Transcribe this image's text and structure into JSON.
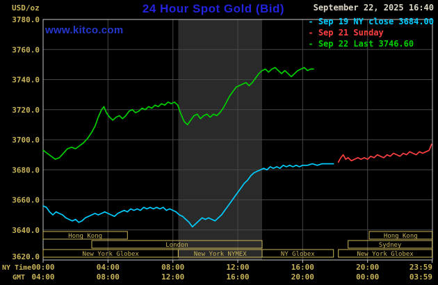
{
  "header": {
    "units_label": "USD/oz",
    "title": "24 Hour Spot Gold (Bid)",
    "datetime": "September 22, 2025 16:40",
    "watermark": "www.kitco.com"
  },
  "legend": {
    "items": [
      {
        "label": "Sep 19 NY close 3684.00",
        "color": "#00ccff"
      },
      {
        "label": "Sep 21 Sunday",
        "color": "#ff4040"
      },
      {
        "label": "Sep 22 Last 3746.60",
        "color": "#00d000"
      }
    ]
  },
  "axes": {
    "ny_caption": "NY Time",
    "gmt_caption": "GMT",
    "x_ticks_ny": [
      "00:00",
      "04:00",
      "08:00",
      "12:00",
      "16:00",
      "20:00",
      "23:59"
    ],
    "x_ticks_gmt": [
      "04:00",
      "08:00",
      "12:00",
      "16:00",
      "20:00",
      "00:00",
      "03:59"
    ]
  },
  "sessions": {
    "rows": [
      {
        "boxes": [
          {
            "label": "Hong Kong",
            "start": 0,
            "end": 5.2
          },
          {
            "label": "Hong Kong",
            "start": 20.1,
            "end": 23.983
          }
        ]
      },
      {
        "boxes": [
          {
            "label": "London",
            "start": 3.0,
            "end": 13.5
          },
          {
            "label": "Sydney",
            "start": 18.8,
            "end": 23.983
          }
        ]
      },
      {
        "boxes": [
          {
            "label": "New York Globex",
            "start": 0,
            "end": 8.33
          },
          {
            "label": "New York NYMEX",
            "start": 8.33,
            "end": 13.5
          },
          {
            "label": "NY Globex",
            "start": 13.5,
            "end": 17.9
          },
          {
            "label": "New York Globex",
            "start": 18.2,
            "end": 23.983
          }
        ]
      }
    ]
  },
  "colors": {
    "background": "#000000",
    "grid": "#474747",
    "border": "#c8c8c8",
    "axis_text": "#c9b459",
    "band": "#2a2a2a",
    "title": "#2323dd",
    "watermark": "#2436cc",
    "datetime": "#ddd8c8"
  },
  "chart_data": {
    "type": "line",
    "title": "24 Hour Spot Gold (Bid)",
    "ylabel": "USD/oz",
    "xlabel": "NY Time (hours)",
    "ylim": [
      3620,
      3780
    ],
    "yticks": [
      3780,
      3760,
      3740,
      3720,
      3700,
      3680,
      3660,
      3640,
      3620
    ],
    "xlim_hours": [
      0,
      24
    ],
    "xticks_hours": [
      0,
      4,
      8,
      12,
      16,
      20,
      23.983
    ],
    "shaded_region_hours": [
      8.33,
      13.5
    ],
    "legend_position": "top-right",
    "grid": true,
    "series": [
      {
        "id": "sep19",
        "name": "Sep 19 NY close",
        "close": 3684.0,
        "color": "#00ccff",
        "points": [
          [
            0,
            3656
          ],
          [
            0.2,
            3655
          ],
          [
            0.4,
            3652
          ],
          [
            0.6,
            3650
          ],
          [
            0.8,
            3652
          ],
          [
            1,
            3651
          ],
          [
            1.2,
            3650
          ],
          [
            1.4,
            3648
          ],
          [
            1.6,
            3647
          ],
          [
            1.8,
            3646
          ],
          [
            2,
            3647
          ],
          [
            2.2,
            3645
          ],
          [
            2.4,
            3646
          ],
          [
            2.6,
            3648
          ],
          [
            2.8,
            3649
          ],
          [
            3,
            3650
          ],
          [
            3.2,
            3651
          ],
          [
            3.4,
            3650
          ],
          [
            3.6,
            3651
          ],
          [
            3.8,
            3652
          ],
          [
            4,
            3651
          ],
          [
            4.2,
            3650
          ],
          [
            4.4,
            3649
          ],
          [
            4.6,
            3651
          ],
          [
            4.8,
            3652
          ],
          [
            5,
            3653
          ],
          [
            5.2,
            3652
          ],
          [
            5.4,
            3654
          ],
          [
            5.6,
            3653
          ],
          [
            5.8,
            3654
          ],
          [
            6,
            3653
          ],
          [
            6.2,
            3655
          ],
          [
            6.4,
            3654
          ],
          [
            6.6,
            3655
          ],
          [
            6.8,
            3654
          ],
          [
            7,
            3655
          ],
          [
            7.2,
            3654
          ],
          [
            7.4,
            3655
          ],
          [
            7.6,
            3653
          ],
          [
            7.8,
            3654
          ],
          [
            8,
            3653
          ],
          [
            8.2,
            3652
          ],
          [
            8.4,
            3650
          ],
          [
            8.6,
            3649
          ],
          [
            8.8,
            3647
          ],
          [
            9,
            3645
          ],
          [
            9.2,
            3642
          ],
          [
            9.4,
            3644
          ],
          [
            9.6,
            3646
          ],
          [
            9.8,
            3648
          ],
          [
            10,
            3647
          ],
          [
            10.2,
            3648
          ],
          [
            10.4,
            3647
          ],
          [
            10.6,
            3646
          ],
          [
            10.8,
            3648
          ],
          [
            11,
            3650
          ],
          [
            11.2,
            3653
          ],
          [
            11.4,
            3656
          ],
          [
            11.6,
            3659
          ],
          [
            11.8,
            3662
          ],
          [
            12,
            3665
          ],
          [
            12.2,
            3668
          ],
          [
            12.4,
            3671
          ],
          [
            12.6,
            3673
          ],
          [
            12.8,
            3676
          ],
          [
            13,
            3678
          ],
          [
            13.2,
            3679
          ],
          [
            13.4,
            3680
          ],
          [
            13.6,
            3681
          ],
          [
            13.8,
            3680
          ],
          [
            14,
            3682
          ],
          [
            14.2,
            3681
          ],
          [
            14.4,
            3682
          ],
          [
            14.6,
            3681
          ],
          [
            14.8,
            3683
          ],
          [
            15,
            3682
          ],
          [
            15.2,
            3683
          ],
          [
            15.4,
            3682
          ],
          [
            15.6,
            3683
          ],
          [
            15.8,
            3682
          ],
          [
            16,
            3683
          ],
          [
            16.3,
            3683
          ],
          [
            16.6,
            3684
          ],
          [
            16.9,
            3683
          ],
          [
            17.2,
            3684
          ],
          [
            17.5,
            3684
          ],
          [
            17.9,
            3684
          ]
        ]
      },
      {
        "id": "sep21",
        "name": "Sep 21 Sunday",
        "color": "#ff4040",
        "points": [
          [
            18.2,
            3685
          ],
          [
            18.35,
            3688
          ],
          [
            18.5,
            3690
          ],
          [
            18.65,
            3687
          ],
          [
            18.8,
            3688
          ],
          [
            19,
            3686
          ],
          [
            19.2,
            3687
          ],
          [
            19.4,
            3688
          ],
          [
            19.6,
            3687
          ],
          [
            19.8,
            3688
          ],
          [
            20,
            3687
          ],
          [
            20.2,
            3689
          ],
          [
            20.4,
            3688
          ],
          [
            20.6,
            3690
          ],
          [
            20.8,
            3689
          ],
          [
            21,
            3688
          ],
          [
            21.2,
            3690
          ],
          [
            21.4,
            3689
          ],
          [
            21.6,
            3691
          ],
          [
            21.8,
            3690
          ],
          [
            22,
            3689
          ],
          [
            22.2,
            3691
          ],
          [
            22.4,
            3690
          ],
          [
            22.6,
            3692
          ],
          [
            22.8,
            3691
          ],
          [
            23,
            3690
          ],
          [
            23.2,
            3692
          ],
          [
            23.4,
            3691
          ],
          [
            23.6,
            3692
          ],
          [
            23.8,
            3693
          ],
          [
            23.95,
            3697
          ]
        ]
      },
      {
        "id": "sep22",
        "name": "Sep 22 Last",
        "last": 3746.6,
        "color": "#00d000",
        "points": [
          [
            0,
            3693
          ],
          [
            0.25,
            3691
          ],
          [
            0.5,
            3689
          ],
          [
            0.75,
            3687
          ],
          [
            1,
            3688
          ],
          [
            1.25,
            3691
          ],
          [
            1.5,
            3694
          ],
          [
            1.75,
            3695
          ],
          [
            2,
            3694
          ],
          [
            2.25,
            3696
          ],
          [
            2.5,
            3698
          ],
          [
            2.75,
            3701
          ],
          [
            3,
            3705
          ],
          [
            3.2,
            3709
          ],
          [
            3.4,
            3715
          ],
          [
            3.6,
            3720
          ],
          [
            3.75,
            3722
          ],
          [
            3.9,
            3718
          ],
          [
            4.1,
            3715
          ],
          [
            4.3,
            3713
          ],
          [
            4.5,
            3715
          ],
          [
            4.7,
            3716
          ],
          [
            4.9,
            3714
          ],
          [
            5.1,
            3716
          ],
          [
            5.3,
            3719
          ],
          [
            5.5,
            3720
          ],
          [
            5.7,
            3718
          ],
          [
            5.9,
            3719
          ],
          [
            6.1,
            3721
          ],
          [
            6.3,
            3720
          ],
          [
            6.5,
            3722
          ],
          [
            6.7,
            3721
          ],
          [
            6.9,
            3723
          ],
          [
            7.1,
            3722
          ],
          [
            7.3,
            3724
          ],
          [
            7.5,
            3723
          ],
          [
            7.7,
            3725
          ],
          [
            7.9,
            3724
          ],
          [
            8.1,
            3725
          ],
          [
            8.3,
            3723
          ],
          [
            8.5,
            3717
          ],
          [
            8.7,
            3712
          ],
          [
            8.9,
            3710
          ],
          [
            9.1,
            3713
          ],
          [
            9.3,
            3716
          ],
          [
            9.5,
            3717
          ],
          [
            9.7,
            3714
          ],
          [
            9.9,
            3716
          ],
          [
            10.1,
            3717
          ],
          [
            10.3,
            3715
          ],
          [
            10.5,
            3717
          ],
          [
            10.7,
            3716
          ],
          [
            10.9,
            3718
          ],
          [
            11.1,
            3721
          ],
          [
            11.3,
            3725
          ],
          [
            11.5,
            3729
          ],
          [
            11.7,
            3732
          ],
          [
            11.9,
            3735
          ],
          [
            12.1,
            3736
          ],
          [
            12.3,
            3737
          ],
          [
            12.5,
            3738
          ],
          [
            12.7,
            3736
          ],
          [
            12.9,
            3738
          ],
          [
            13.1,
            3741
          ],
          [
            13.3,
            3744
          ],
          [
            13.5,
            3746
          ],
          [
            13.7,
            3747
          ],
          [
            13.9,
            3745
          ],
          [
            14.1,
            3747
          ],
          [
            14.3,
            3748
          ],
          [
            14.5,
            3746
          ],
          [
            14.7,
            3744
          ],
          [
            14.9,
            3746
          ],
          [
            15.1,
            3744
          ],
          [
            15.3,
            3742
          ],
          [
            15.5,
            3744
          ],
          [
            15.7,
            3746
          ],
          [
            15.9,
            3747
          ],
          [
            16.1,
            3748
          ],
          [
            16.3,
            3746
          ],
          [
            16.5,
            3747
          ],
          [
            16.67,
            3747
          ]
        ]
      }
    ]
  }
}
